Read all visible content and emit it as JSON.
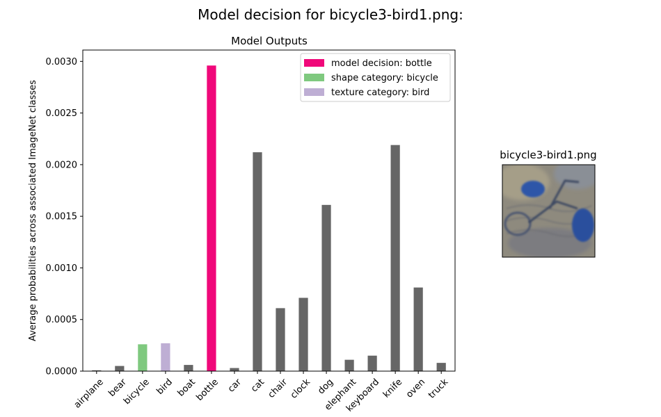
{
  "figure": {
    "suptitle": "Model decision for bicycle3-bird1.png:"
  },
  "chart_data": {
    "type": "bar",
    "title": "Model Outputs",
    "xlabel": "",
    "ylabel": "Average probabilities across associated ImageNet classes",
    "ylim": [
      0,
      0.00311
    ],
    "yticks": [
      "0.0000",
      "0.0005",
      "0.0010",
      "0.0015",
      "0.0020",
      "0.0025",
      "0.0030"
    ],
    "ytick_values": [
      0,
      0.0005,
      0.001,
      0.0015,
      0.002,
      0.0025,
      0.003
    ],
    "categories": [
      "airplane",
      "bear",
      "bicycle",
      "bird",
      "boat",
      "bottle",
      "car",
      "cat",
      "chair",
      "clock",
      "dog",
      "elephant",
      "keyboard",
      "knife",
      "oven",
      "truck"
    ],
    "values": [
      8e-06,
      5e-05,
      0.00026,
      0.00027,
      6e-05,
      0.00296,
      3e-05,
      0.00212,
      0.00061,
      0.00071,
      0.00161,
      0.00011,
      0.00015,
      0.00219,
      0.00081,
      8e-05
    ],
    "highlights": {
      "bottle": "#f0087a",
      "bicycle": "#7fc97f",
      "bird": "#beaed4"
    },
    "default_color": "#666666",
    "grid": false,
    "legend_position": "top-right",
    "legend": [
      {
        "label": "model decision: bottle",
        "color": "#f0087a"
      },
      {
        "label": "shape category: bicycle",
        "color": "#7fc97f"
      },
      {
        "label": "texture category: bird",
        "color": "#beaed4"
      }
    ]
  },
  "thumbnail": {
    "title": "bicycle3-bird1.png"
  }
}
